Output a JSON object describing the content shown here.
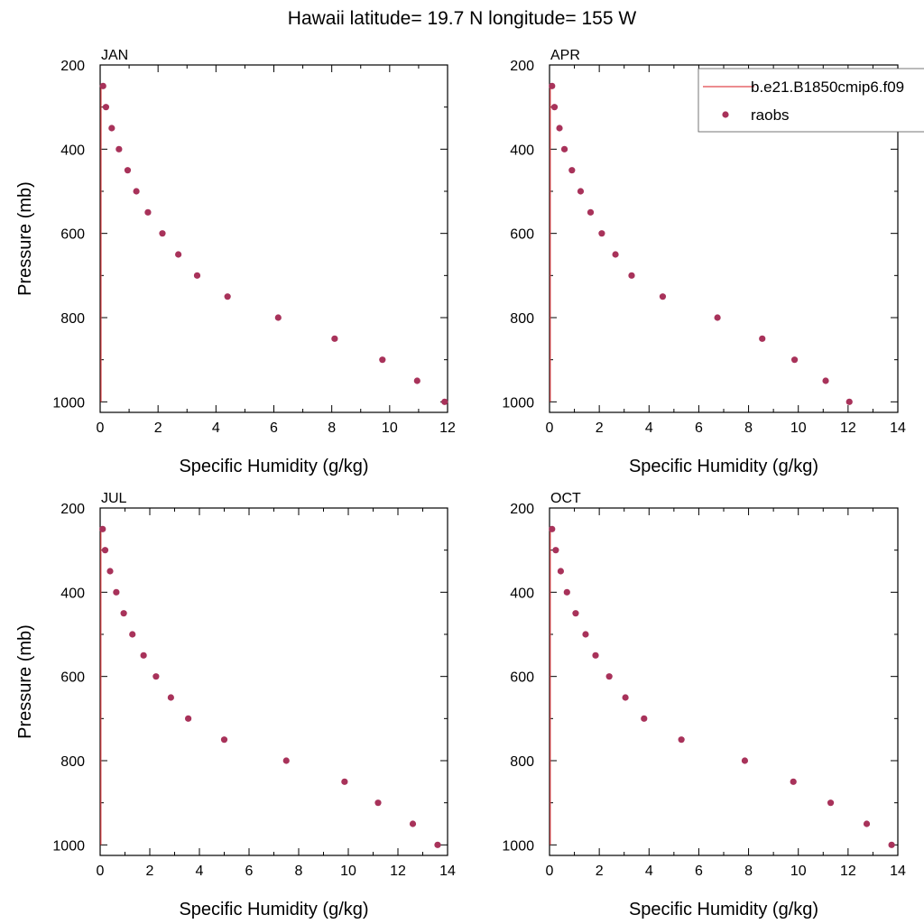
{
  "figure": {
    "title": "Hawaii  latitude= 19.7 N longitude= 155 W"
  },
  "legend": {
    "model_label": "b.e21.B1850cmip6.f09",
    "obs_label": "raobs",
    "position": "top-right"
  },
  "colors": {
    "model_line": "#e0474c",
    "obs_marker": "#a8325a",
    "axis": "#000000"
  },
  "chart_data": [
    {
      "type": "scatter",
      "panel": "JAN",
      "title": "JAN",
      "xlabel": "Specific Humidity (g/kg)",
      "ylabel": "Pressure (mb)",
      "xlim": [
        0,
        12
      ],
      "ylim": [
        1025,
        200
      ],
      "x_ticks": [
        "0",
        "2",
        "4",
        "6",
        "8",
        "10",
        "12"
      ],
      "y_ticks": [
        "200",
        "400",
        "600",
        "800",
        "1000"
      ],
      "model_line": {
        "name": "b.e21.B1850cmip6.f09",
        "pressure": [
          250,
          1000
        ],
        "values": [
          0.03,
          0.03
        ]
      },
      "series": [
        {
          "name": "raobs",
          "pressure": [
            250,
            300,
            350,
            400,
            450,
            500,
            550,
            600,
            650,
            700,
            750,
            800,
            850,
            900,
            950,
            1000
          ],
          "values": [
            0.1,
            0.2,
            0.4,
            0.65,
            0.95,
            1.25,
            1.65,
            2.15,
            2.7,
            3.35,
            4.4,
            6.15,
            8.1,
            9.75,
            10.95,
            11.9
          ]
        }
      ]
    },
    {
      "type": "scatter",
      "panel": "APR",
      "title": "APR",
      "xlabel": "Specific Humidity (g/kg)",
      "ylabel": "",
      "xlim": [
        0,
        14
      ],
      "ylim": [
        1025,
        200
      ],
      "x_ticks": [
        "0",
        "2",
        "4",
        "6",
        "8",
        "10",
        "12",
        "14"
      ],
      "y_ticks": [
        "200",
        "400",
        "600",
        "800",
        "1000"
      ],
      "model_line": {
        "name": "b.e21.B1850cmip6.f09",
        "pressure": [
          250,
          1000
        ],
        "values": [
          0.03,
          0.03
        ]
      },
      "series": [
        {
          "name": "raobs",
          "pressure": [
            250,
            300,
            350,
            400,
            450,
            500,
            550,
            600,
            650,
            700,
            750,
            800,
            850,
            900,
            950,
            1000
          ],
          "values": [
            0.1,
            0.2,
            0.4,
            0.6,
            0.9,
            1.25,
            1.65,
            2.1,
            2.65,
            3.3,
            4.55,
            6.75,
            8.55,
            9.85,
            11.1,
            12.05
          ]
        }
      ]
    },
    {
      "type": "scatter",
      "panel": "JUL",
      "title": "JUL",
      "xlabel": "Specific Humidity (g/kg)",
      "ylabel": "Pressure (mb)",
      "xlim": [
        0,
        14
      ],
      "ylim": [
        1025,
        200
      ],
      "x_ticks": [
        "0",
        "2",
        "4",
        "6",
        "8",
        "10",
        "12",
        "14"
      ],
      "y_ticks": [
        "200",
        "400",
        "600",
        "800",
        "1000"
      ],
      "model_line": {
        "name": "b.e21.B1850cmip6.f09",
        "pressure": [
          250,
          1000
        ],
        "values": [
          0.03,
          0.03
        ]
      },
      "series": [
        {
          "name": "raobs",
          "pressure": [
            250,
            300,
            350,
            400,
            450,
            500,
            550,
            600,
            650,
            700,
            750,
            800,
            850,
            900,
            950,
            1000
          ],
          "values": [
            0.1,
            0.2,
            0.4,
            0.65,
            0.95,
            1.3,
            1.75,
            2.25,
            2.85,
            3.55,
            5.0,
            7.5,
            9.85,
            11.2,
            12.6,
            13.6
          ]
        }
      ]
    },
    {
      "type": "scatter",
      "panel": "OCT",
      "title": "OCT",
      "xlabel": "Specific Humidity (g/kg)",
      "ylabel": "",
      "xlim": [
        0,
        14
      ],
      "ylim": [
        1025,
        200
      ],
      "x_ticks": [
        "0",
        "2",
        "4",
        "6",
        "8",
        "10",
        "12",
        "14"
      ],
      "y_ticks": [
        "200",
        "400",
        "600",
        "800",
        "1000"
      ],
      "model_line": {
        "name": "b.e21.B1850cmip6.f09",
        "pressure": [
          250,
          1000
        ],
        "values": [
          0.03,
          0.03
        ]
      },
      "series": [
        {
          "name": "raobs",
          "pressure": [
            250,
            300,
            350,
            400,
            450,
            500,
            550,
            600,
            650,
            700,
            750,
            800,
            850,
            900,
            950,
            1000
          ],
          "values": [
            0.1,
            0.25,
            0.45,
            0.7,
            1.05,
            1.45,
            1.85,
            2.4,
            3.05,
            3.8,
            5.3,
            7.85,
            9.8,
            11.3,
            12.75,
            13.75
          ]
        }
      ]
    }
  ]
}
